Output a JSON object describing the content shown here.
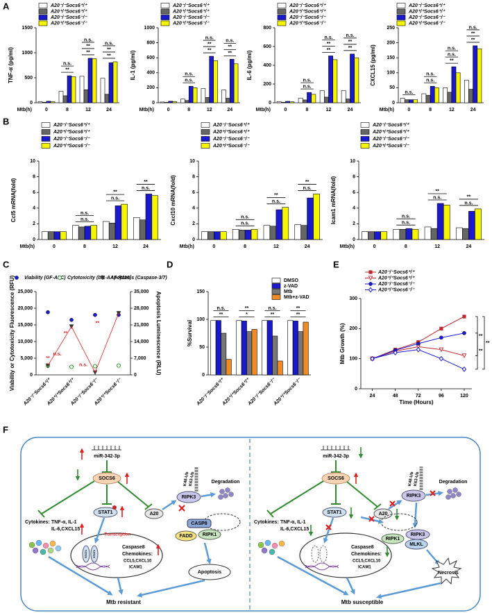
{
  "panel_labels": [
    "A",
    "B",
    "C",
    "D",
    "E",
    "F"
  ],
  "chart_data": [
    {
      "type": "bar",
      "ylabel": "TNF-α (pg/ml)",
      "xlabel": "Mtb(h)",
      "categories": [
        "0",
        "8",
        "12",
        "24"
      ],
      "series": [
        {
          "name": "A20⁻/⁻Socs6⁺/⁺",
          "color": "#ffffff",
          "values": [
            20,
            230,
            530,
            490
          ]
        },
        {
          "name": "A20⁺/⁺Socs6⁺/⁺",
          "color": "#666666",
          "values": [
            10,
            140,
            260,
            170
          ]
        },
        {
          "name": "A20⁻/⁻Socs6⁻/⁻",
          "color": "#1a1acc",
          "values": [
            30,
            540,
            890,
            800
          ]
        },
        {
          "name": "A20⁺/⁺Socs6⁻/⁻",
          "color": "#f5f500",
          "values": [
            20,
            520,
            880,
            820
          ]
        }
      ],
      "ylim": [
        0,
        1500
      ],
      "yticks": [
        0,
        500,
        1000,
        1500
      ],
      "annotations": [
        [],
        [
          "**",
          "n.s."
        ],
        [
          "**",
          "**",
          "n.s."
        ],
        [
          "**",
          "**",
          "n.s."
        ]
      ]
    },
    {
      "type": "bar",
      "ylabel": "IL-1 (pg/ml)",
      "xlabel": "Mtb(h)",
      "categories": [
        "0",
        "8",
        "12",
        "24"
      ],
      "series": [
        {
          "name": "A20⁻/⁻Socs6⁺/⁺",
          "color": "#ffffff",
          "values": [
            10,
            50,
            190,
            170
          ]
        },
        {
          "name": "A20⁺/⁺Socs6⁺/⁺",
          "color": "#666666",
          "values": [
            5,
            30,
            70,
            60
          ]
        },
        {
          "name": "A20⁻/⁻Socs6⁻/⁻",
          "color": "#1a1acc",
          "values": [
            20,
            220,
            620,
            580
          ]
        },
        {
          "name": "A20⁺/⁺Socs6⁻/⁻",
          "color": "#f5f500",
          "values": [
            15,
            200,
            560,
            520
          ]
        }
      ],
      "ylim": [
        0,
        1000
      ],
      "yticks": [
        0,
        200,
        400,
        600,
        800,
        1000
      ],
      "annotations": [
        [],
        [
          "n.s.",
          "n.s."
        ],
        [
          "**",
          "**",
          "n.s."
        ],
        [
          "**",
          "**",
          "n.s."
        ]
      ]
    },
    {
      "type": "bar",
      "ylabel": "IL-6 (pg/ml)",
      "xlabel": "Mtb(h)",
      "categories": [
        "0",
        "8",
        "12",
        "24"
      ],
      "series": [
        {
          "name": "A20⁻/⁻Socs6⁺/⁺",
          "color": "#ffffff",
          "values": [
            10,
            50,
            130,
            130
          ]
        },
        {
          "name": "A20⁺/⁺Socs6⁺/⁺",
          "color": "#666666",
          "values": [
            5,
            30,
            60,
            40
          ]
        },
        {
          "name": "A20⁻/⁻Socs6⁻/⁻",
          "color": "#1a1acc",
          "values": [
            15,
            110,
            500,
            520
          ]
        },
        {
          "name": "A20⁺/⁺Socs6⁻/⁻",
          "color": "#f5f500",
          "values": [
            10,
            90,
            460,
            480
          ]
        }
      ],
      "ylim": [
        0,
        800
      ],
      "yticks": [
        0,
        200,
        400,
        600,
        800
      ],
      "annotations": [
        [],
        [
          "n.s.",
          "n.s."
        ],
        [
          "**",
          "**",
          "n.s."
        ],
        [
          "**",
          "**",
          "n.s."
        ]
      ]
    },
    {
      "type": "bar",
      "ylabel": "CXCL15 (pg/ml)",
      "xlabel": "Mtb(h)",
      "categories": [
        "0",
        "8",
        "12",
        "24"
      ],
      "series": [
        {
          "name": "A20⁻/⁻Socs6⁺/⁺",
          "color": "#ffffff",
          "values": [
            15,
            30,
            50,
            75
          ]
        },
        {
          "name": "A20⁺/⁺Socs6⁺/⁺",
          "color": "#666666",
          "values": [
            10,
            25,
            35,
            45
          ]
        },
        {
          "name": "A20⁻/⁻Socs6⁻/⁻",
          "color": "#1a1acc",
          "values": [
            10,
            55,
            120,
            190
          ]
        },
        {
          "name": "A20⁺/⁺Socs6⁻/⁻",
          "color": "#f5f500",
          "values": [
            10,
            50,
            100,
            180
          ]
        }
      ],
      "ylim": [
        0,
        250
      ],
      "yticks": [
        0,
        50,
        100,
        150,
        200,
        250
      ],
      "annotations": [
        [
          "n.s."
        ],
        [
          "n.s.",
          "n.s."
        ],
        [
          "**",
          "n.s.",
          "n.s."
        ],
        [
          "**",
          "**",
          "n.s."
        ]
      ]
    },
    {
      "type": "bar",
      "ylabel": "Ccl5 mRNA(fold)",
      "xlabel": "Mtb(h)",
      "categories": [
        "0",
        "8",
        "12",
        "24"
      ],
      "series": [
        {
          "name": "A20⁻/⁻Socs6⁺/⁺",
          "color": "#ffffff",
          "values": [
            1,
            1.8,
            2.3,
            2.8
          ]
        },
        {
          "name": "A20⁺/⁺Socs6⁺/⁺",
          "color": "#666666",
          "values": [
            1,
            1.6,
            2.1,
            2.5
          ]
        },
        {
          "name": "A20⁻/⁻Socs6⁻/⁻",
          "color": "#1a1acc",
          "values": [
            1,
            1.7,
            4.3,
            5.8
          ]
        },
        {
          "name": "A20⁺/⁺Socs6⁻/⁻",
          "color": "#f5f500",
          "values": [
            1,
            1.8,
            4.5,
            5.6
          ]
        }
      ],
      "ylim": [
        0,
        10
      ],
      "yticks": [
        0,
        2,
        4,
        6,
        8,
        10
      ],
      "annotations": [
        [],
        [
          "n.s.",
          "n.s."
        ],
        [
          "n.s.",
          "**"
        ],
        [
          "n.s.",
          "**"
        ]
      ]
    },
    {
      "type": "bar",
      "ylabel": "Cxcl10 mRNA(fold)",
      "xlabel": "Mtb(h)",
      "categories": [
        "0",
        "8",
        "12",
        "24"
      ],
      "series": [
        {
          "name": "A20⁻/⁻Socs6⁺/⁺",
          "color": "#ffffff",
          "values": [
            1,
            1.3,
            1.8,
            1.9
          ]
        },
        {
          "name": "A20⁺/⁺Socs6⁺/⁺",
          "color": "#666666",
          "values": [
            1,
            1.2,
            1.7,
            1.8
          ]
        },
        {
          "name": "A20⁻/⁻Socs6⁻/⁻",
          "color": "#1a1acc",
          "values": [
            1,
            1.2,
            3.8,
            5.3
          ]
        },
        {
          "name": "A20⁺/⁺Socs6⁻/⁻",
          "color": "#f5f500",
          "values": [
            1,
            1.3,
            4.1,
            5.8
          ]
        }
      ],
      "ylim": [
        0,
        10
      ],
      "yticks": [
        0,
        2,
        4,
        6,
        8,
        10
      ],
      "annotations": [
        [],
        [
          "n.s.",
          "n.s."
        ],
        [
          "n.s.",
          "**"
        ],
        [
          "n.s.",
          "**"
        ]
      ]
    },
    {
      "type": "bar",
      "ylabel": "Icam1 mRNA(fold)",
      "xlabel": "Mtb(h)",
      "categories": [
        "0",
        "8",
        "12",
        "24"
      ],
      "series": [
        {
          "name": "A20⁻/⁻Socs6⁺/⁺",
          "color": "#ffffff",
          "values": [
            1,
            1.3,
            1.6,
            1.5
          ]
        },
        {
          "name": "A20⁺/⁺Socs6⁺/⁺",
          "color": "#666666",
          "values": [
            1,
            1.3,
            1.4,
            1.4
          ]
        },
        {
          "name": "A20⁻/⁻Socs6⁻/⁻",
          "color": "#1a1acc",
          "values": [
            1,
            1.4,
            4.6,
            3.6
          ]
        },
        {
          "name": "A20⁺/⁺Socs6⁻/⁻",
          "color": "#f5f500",
          "values": [
            1,
            1.3,
            4.4,
            3.9
          ]
        }
      ],
      "ylim": [
        0,
        10
      ],
      "yticks": [
        0,
        2,
        4,
        6,
        8,
        10
      ],
      "annotations": [
        [],
        [
          "n.s.",
          "n.s."
        ],
        [
          "n.s.",
          "**"
        ],
        [
          "n.s.",
          "**"
        ]
      ]
    },
    {
      "type": "scatter",
      "ylabel": "Viability or Cytotoxicity Fluorescence (RFU)",
      "y2label": "Apoptosis Luminescence (RLU)",
      "categories": [
        "A20⁻/⁻Socs6⁺/⁺",
        "A20⁺/⁺Socs6⁺/⁺",
        "A20⁻/⁻Socs6⁻/⁻",
        "A20⁺/⁺Socs6⁻/⁻"
      ],
      "series": [
        {
          "name": "Viability (GF-AFC)",
          "color": "#1a1acc",
          "marker": "circle",
          "values": [
            18800,
            16500,
            18000,
            18000
          ]
        },
        {
          "name": "Cytotoxicity (bis-AAF-R110)",
          "color": "#2e9b2e",
          "marker": "open-circle",
          "values": [
            2700,
            2400,
            2600,
            2800
          ]
        },
        {
          "name": "Apoptosis (Caspase-3/7)",
          "color": "#333333",
          "marker": "triangle",
          "line_color": "#e02020",
          "axis": "y2",
          "values": [
            3900,
            20300,
            1000,
            25900
          ]
        }
      ],
      "ylim": [
        0,
        25000
      ],
      "yticks": [
        0,
        {
          "value": 5000,
          "label": "5,000"
        },
        {
          "value": 10000,
          "label": "10,000"
        },
        {
          "value": 15000,
          "label": "15,000"
        },
        {
          "value": 20000,
          "label": "20,000"
        },
        {
          "value": 25000,
          "label": "25,000"
        }
      ],
      "y2lim": [
        0,
        35000
      ],
      "y2ticks": [
        0,
        {
          "value": 7000,
          "label": "7,000"
        },
        {
          "value": 14000,
          "label": "14,000"
        },
        {
          "value": 21000,
          "label": "21,000"
        },
        {
          "value": 28000,
          "label": "28,000"
        },
        {
          "value": 35000,
          "label": "35,000"
        }
      ],
      "annotations": [
        "**",
        "n.s.",
        "**",
        "**",
        "n.s."
      ],
      "annotation_color": "#e02020"
    },
    {
      "type": "bar",
      "ylabel": "%Survival",
      "categories": [
        "A20⁻/⁻Socs6⁺/⁺",
        "A20⁺/⁺Socs6⁺/⁺",
        "A20⁻/⁻Socs6⁻/⁻",
        "A20⁺/⁺Socs6⁻/⁻"
      ],
      "series": [
        {
          "name": "DMSO",
          "color": "#ffffff",
          "values": [
            98,
            98,
            98,
            98
          ]
        },
        {
          "name": "z-VAD",
          "color": "#1a1acc",
          "values": [
            98,
            97,
            98,
            97
          ]
        },
        {
          "name": "Mtb",
          "color": "#777777",
          "values": [
            75,
            78,
            70,
            78
          ]
        },
        {
          "name": "Mtb+z-VAD",
          "color": "#f08a24",
          "values": [
            28,
            82,
            25,
            95
          ]
        }
      ],
      "ylim": [
        0,
        150
      ],
      "yticks": [
        0,
        50,
        100,
        150
      ],
      "annotations": [
        [
          "**",
          "n.s."
        ],
        [
          "*",
          "**"
        ],
        [
          "**",
          "n.s."
        ],
        [
          "**",
          "**"
        ]
      ]
    },
    {
      "type": "line",
      "ylabel": "Mtb Growth (%)",
      "xlabel": "Time (Hours)",
      "x": [
        24,
        48,
        72,
        96,
        120
      ],
      "series": [
        {
          "name": "A20⁻/⁻Socs6⁺/⁺",
          "color": "#c0282d",
          "marker": "square",
          "values": [
            100,
            130,
            155,
            200,
            240
          ]
        },
        {
          "name": "A20⁺/⁺Socs6⁺/⁺",
          "color": "#c0282d",
          "marker": "open-triangle",
          "values": [
            100,
            125,
            140,
            130,
            110
          ]
        },
        {
          "name": "A20⁻/⁻Socs6⁻/⁻",
          "color": "#1a1acc",
          "marker": "circle",
          "values": [
            100,
            128,
            150,
            170,
            185
          ]
        },
        {
          "name": "A20⁺/⁺Socs6⁻/⁻",
          "color": "#1a1acc",
          "marker": "open-diamond",
          "values": [
            100,
            120,
            130,
            100,
            65
          ]
        }
      ],
      "xlim": [
        12,
        128
      ],
      "xticks": [
        24,
        48,
        72,
        96,
        120
      ],
      "ylim": [
        0,
        300
      ],
      "yticks": [
        0,
        100,
        200,
        300
      ],
      "annotations": [
        "**",
        "**",
        "**"
      ]
    }
  ],
  "diagram": {
    "left": {
      "mirna": "miR-342-3p",
      "socs6": "SOCS6",
      "stat1": "STAT1",
      "a20": "A20",
      "ripk3": "RIPK3",
      "k48": "K48-Ub",
      "k63": "K63-Ub",
      "degradation": "Degradation",
      "casp8": "CASP8",
      "fadd": "FADD",
      "ripk1": "RIPK1",
      "cytokines": "Cytokines:",
      "cytokine_list_1": "TNF-α, IL-1",
      "cytokine_list_2": "IL-6,CXCL15",
      "transcription": "Transcription",
      "dimer_1": "STAT1",
      "dimer_2": "STAT1",
      "caspase8": "Caspase8",
      "chemokines": "Chemokines:",
      "chemokine_list_1": "CCL5,CXCL10",
      "chemokine_list_2": "ICAM1",
      "death": "Apoptosis",
      "outcome": "Mtb resistant"
    },
    "right": {
      "mirna": "miR-342-3p",
      "socs6": "SOCS6",
      "stat1": "STAT1",
      "a20": "A20",
      "ripk3": "RIPK3",
      "k48": "K48-Ub",
      "k63": "K63-Ub",
      "degradation": "Degradation",
      "ripk1": "RIPK1",
      "ripk3_complex": "RIPK3",
      "mlkl": "MLKL",
      "cytokines": "Cytokines:",
      "cytokine_list_1": "TNF-α, IL-1",
      "cytokine_list_2": "IL-6,CXCL15",
      "caspase8": "Caspase8",
      "chemokines": "Chemokines:",
      "chemokine_list_1": "CCL5,CXCL10",
      "chemokine_list_2": "ICAM1",
      "death": "Necrosis",
      "outcome": "Mtb susceptible"
    }
  }
}
